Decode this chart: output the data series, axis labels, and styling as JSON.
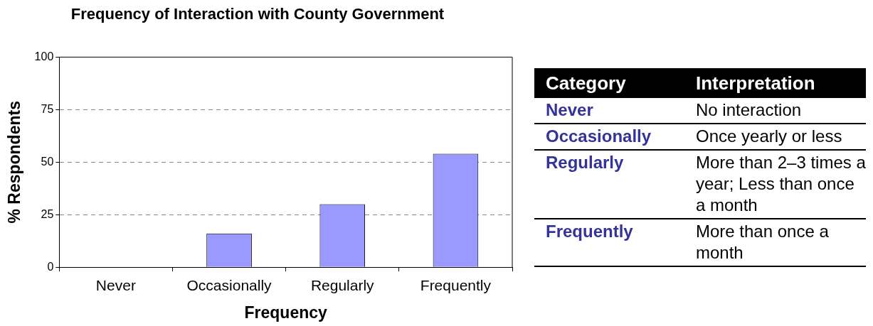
{
  "chart_data": [
    {
      "type": "bar",
      "title": "Frequency of Interaction with County Government",
      "xlabel": "Frequency",
      "ylabel": "% Respondents",
      "categories": [
        "Never",
        "Occasionally",
        "Regularly",
        "Frequently"
      ],
      "values": [
        0,
        16,
        30,
        54
      ],
      "color": "#9999ff",
      "ylim": [
        0,
        100
      ],
      "yticks": [
        0,
        25,
        50,
        75,
        100
      ],
      "grid": "y"
    },
    {
      "type": "other",
      "annotations": [
        "Category",
        "Interpretation",
        "Never",
        "No interaction",
        "Occasionally",
        "Once yearly or less",
        "Regularly",
        "More than 2–3 times a year; Less than once a month",
        "Frequently",
        "More than once a month"
      ]
    }
  ]
}
